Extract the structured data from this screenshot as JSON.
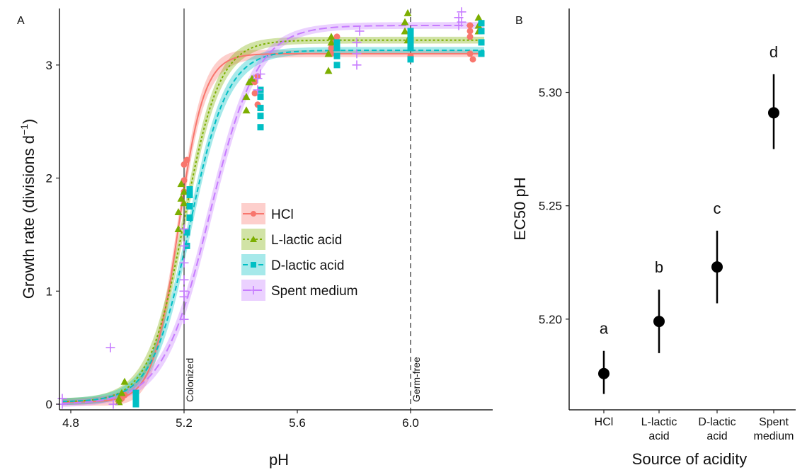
{
  "chart_data": [
    {
      "type": "scatter",
      "panel_label": "A",
      "xlabel": "pH",
      "ylabel": "Growth rate (divisions d",
      "ylabel_sup": "−1",
      "ylabel_close": ")",
      "xlim": [
        4.76,
        6.29
      ],
      "ylim": [
        -0.05,
        3.5
      ],
      "xticks": [
        4.8,
        5.2,
        5.6,
        6.0
      ],
      "xtick_labels": [
        "4.8",
        "5.2",
        "5.6",
        "6.0"
      ],
      "yticks": [
        0,
        1,
        2,
        3
      ],
      "ytick_labels": [
        "0",
        "1",
        "2",
        "3"
      ],
      "grid": false,
      "legend_position": "center-right",
      "reference_lines": [
        {
          "x": 5.2,
          "label": "Colonized",
          "style": "solid"
        },
        {
          "x": 6.0,
          "label": "Germ-free",
          "style": "dashed"
        }
      ],
      "series": [
        {
          "name": "HCl",
          "color": "#f8766d",
          "marker": "circle",
          "line": "solid",
          "curve": {
            "lower": 0.02,
            "upper": 3.1,
            "ec50": 5.18,
            "slope": 22
          },
          "points": [
            [
              4.97,
              0.02
            ],
            [
              4.98,
              0.05
            ],
            [
              4.99,
              0.08
            ],
            [
              5.2,
              1.98
            ],
            [
              5.2,
              2.12
            ],
            [
              5.21,
              2.16
            ],
            [
              5.2,
              1.88
            ],
            [
              5.45,
              2.75
            ],
            [
              5.45,
              2.85
            ],
            [
              5.46,
              2.9
            ],
            [
              5.46,
              2.65
            ],
            [
              5.72,
              3.1
            ],
            [
              5.73,
              3.2
            ],
            [
              5.74,
              3.25
            ],
            [
              5.72,
              3.15
            ],
            [
              6.0,
              3.08
            ],
            [
              6.0,
              3.15
            ],
            [
              6.0,
              3.05
            ],
            [
              6.21,
              3.1
            ],
            [
              6.21,
              3.3
            ],
            [
              6.21,
              3.35
            ],
            [
              6.21,
              3.25
            ],
            [
              6.22,
              3.05
            ]
          ]
        },
        {
          "name": "L-lactic acid",
          "color": "#7cae00",
          "marker": "triangle",
          "line": "dotted",
          "curve": {
            "lower": 0.02,
            "upper": 3.22,
            "ec50": 5.2,
            "slope": 16
          },
          "points": [
            [
              4.97,
              0.02
            ],
            [
              4.97,
              0.05
            ],
            [
              4.98,
              0.1
            ],
            [
              4.99,
              0.2
            ],
            [
              5.18,
              1.55
            ],
            [
              5.18,
              1.7
            ],
            [
              5.19,
              1.82
            ],
            [
              5.19,
              1.95
            ],
            [
              5.2,
              1.78
            ],
            [
              5.2,
              1.88
            ],
            [
              5.42,
              2.6
            ],
            [
              5.42,
              2.72
            ],
            [
              5.43,
              2.85
            ],
            [
              5.44,
              2.88
            ],
            [
              5.71,
              2.95
            ],
            [
              5.71,
              3.1
            ],
            [
              5.72,
              3.2
            ],
            [
              5.72,
              3.25
            ],
            [
              5.98,
              3.3
            ],
            [
              5.98,
              3.38
            ],
            [
              5.99,
              3.46
            ],
            [
              5.99,
              3.22
            ],
            [
              6.24,
              3.3
            ],
            [
              6.24,
              3.35
            ],
            [
              6.24,
              3.42
            ]
          ]
        },
        {
          "name": "D-lactic acid",
          "color": "#00bfc4",
          "marker": "square",
          "line": "dashed",
          "curve": {
            "lower": 0.02,
            "upper": 3.13,
            "ec50": 5.22,
            "slope": 15
          },
          "points": [
            [
              5.03,
              0.0
            ],
            [
              5.03,
              0.05
            ],
            [
              5.03,
              0.1
            ],
            [
              5.21,
              1.4
            ],
            [
              5.21,
              1.52
            ],
            [
              5.22,
              1.65
            ],
            [
              5.22,
              1.75
            ],
            [
              5.22,
              1.85
            ],
            [
              5.22,
              1.9
            ],
            [
              5.47,
              2.45
            ],
            [
              5.47,
              2.55
            ],
            [
              5.47,
              2.62
            ],
            [
              5.47,
              2.72
            ],
            [
              5.47,
              2.78
            ],
            [
              5.74,
              3.0
            ],
            [
              5.74,
              3.08
            ],
            [
              5.74,
              3.15
            ],
            [
              5.74,
              3.2
            ],
            [
              6.0,
              3.05
            ],
            [
              6.0,
              3.15
            ],
            [
              6.0,
              3.2
            ],
            [
              6.0,
              3.25
            ],
            [
              6.0,
              3.3
            ],
            [
              6.25,
              3.1
            ],
            [
              6.25,
              3.2
            ],
            [
              6.25,
              3.3
            ],
            [
              6.25,
              3.37
            ]
          ]
        },
        {
          "name": "Spent medium",
          "color": "#c77cff",
          "marker": "plus",
          "line": "longdash",
          "curve": {
            "lower": 0.0,
            "upper": 3.35,
            "ec50": 5.29,
            "slope": 12
          },
          "points": [
            [
              4.77,
              0.05
            ],
            [
              4.77,
              0.0
            ],
            [
              4.94,
              0.5
            ],
            [
              4.95,
              0.0
            ],
            [
              5.2,
              0.75
            ],
            [
              5.2,
              0.95
            ],
            [
              5.2,
              1.0
            ],
            [
              5.2,
              1.1
            ],
            [
              5.2,
              1.25
            ],
            [
              5.2,
              1.4
            ],
            [
              5.2,
              1.55
            ],
            [
              5.46,
              2.78
            ],
            [
              5.46,
              2.88
            ],
            [
              5.47,
              2.92
            ],
            [
              5.81,
              3.0
            ],
            [
              5.81,
              3.1
            ],
            [
              5.81,
              3.2
            ],
            [
              5.82,
              3.3
            ],
            [
              6.17,
              3.35
            ],
            [
              6.17,
              3.42
            ],
            [
              6.18,
              3.47
            ],
            [
              6.18,
              3.38
            ]
          ]
        }
      ]
    },
    {
      "type": "scatter",
      "panel_label": "B",
      "xlabel": "Source of acidity",
      "ylabel": "EC50 pH",
      "ylim": [
        5.16,
        5.337
      ],
      "yticks": [
        5.2,
        5.25,
        5.3
      ],
      "ytick_labels": [
        "5.20",
        "5.25",
        "5.30"
      ],
      "grid": false,
      "categories": [
        {
          "label_lines": [
            "HCl"
          ]
        },
        {
          "label_lines": [
            "L-lactic",
            "acid"
          ]
        },
        {
          "label_lines": [
            "D-lactic",
            "acid"
          ]
        },
        {
          "label_lines": [
            "Spent",
            "medium"
          ]
        }
      ],
      "values": [
        5.176,
        5.199,
        5.223,
        5.291
      ],
      "error_low": [
        5.167,
        5.185,
        5.207,
        5.275
      ],
      "error_high": [
        5.186,
        5.213,
        5.239,
        5.308
      ],
      "group_letters": [
        "a",
        "b",
        "c",
        "d"
      ]
    }
  ]
}
